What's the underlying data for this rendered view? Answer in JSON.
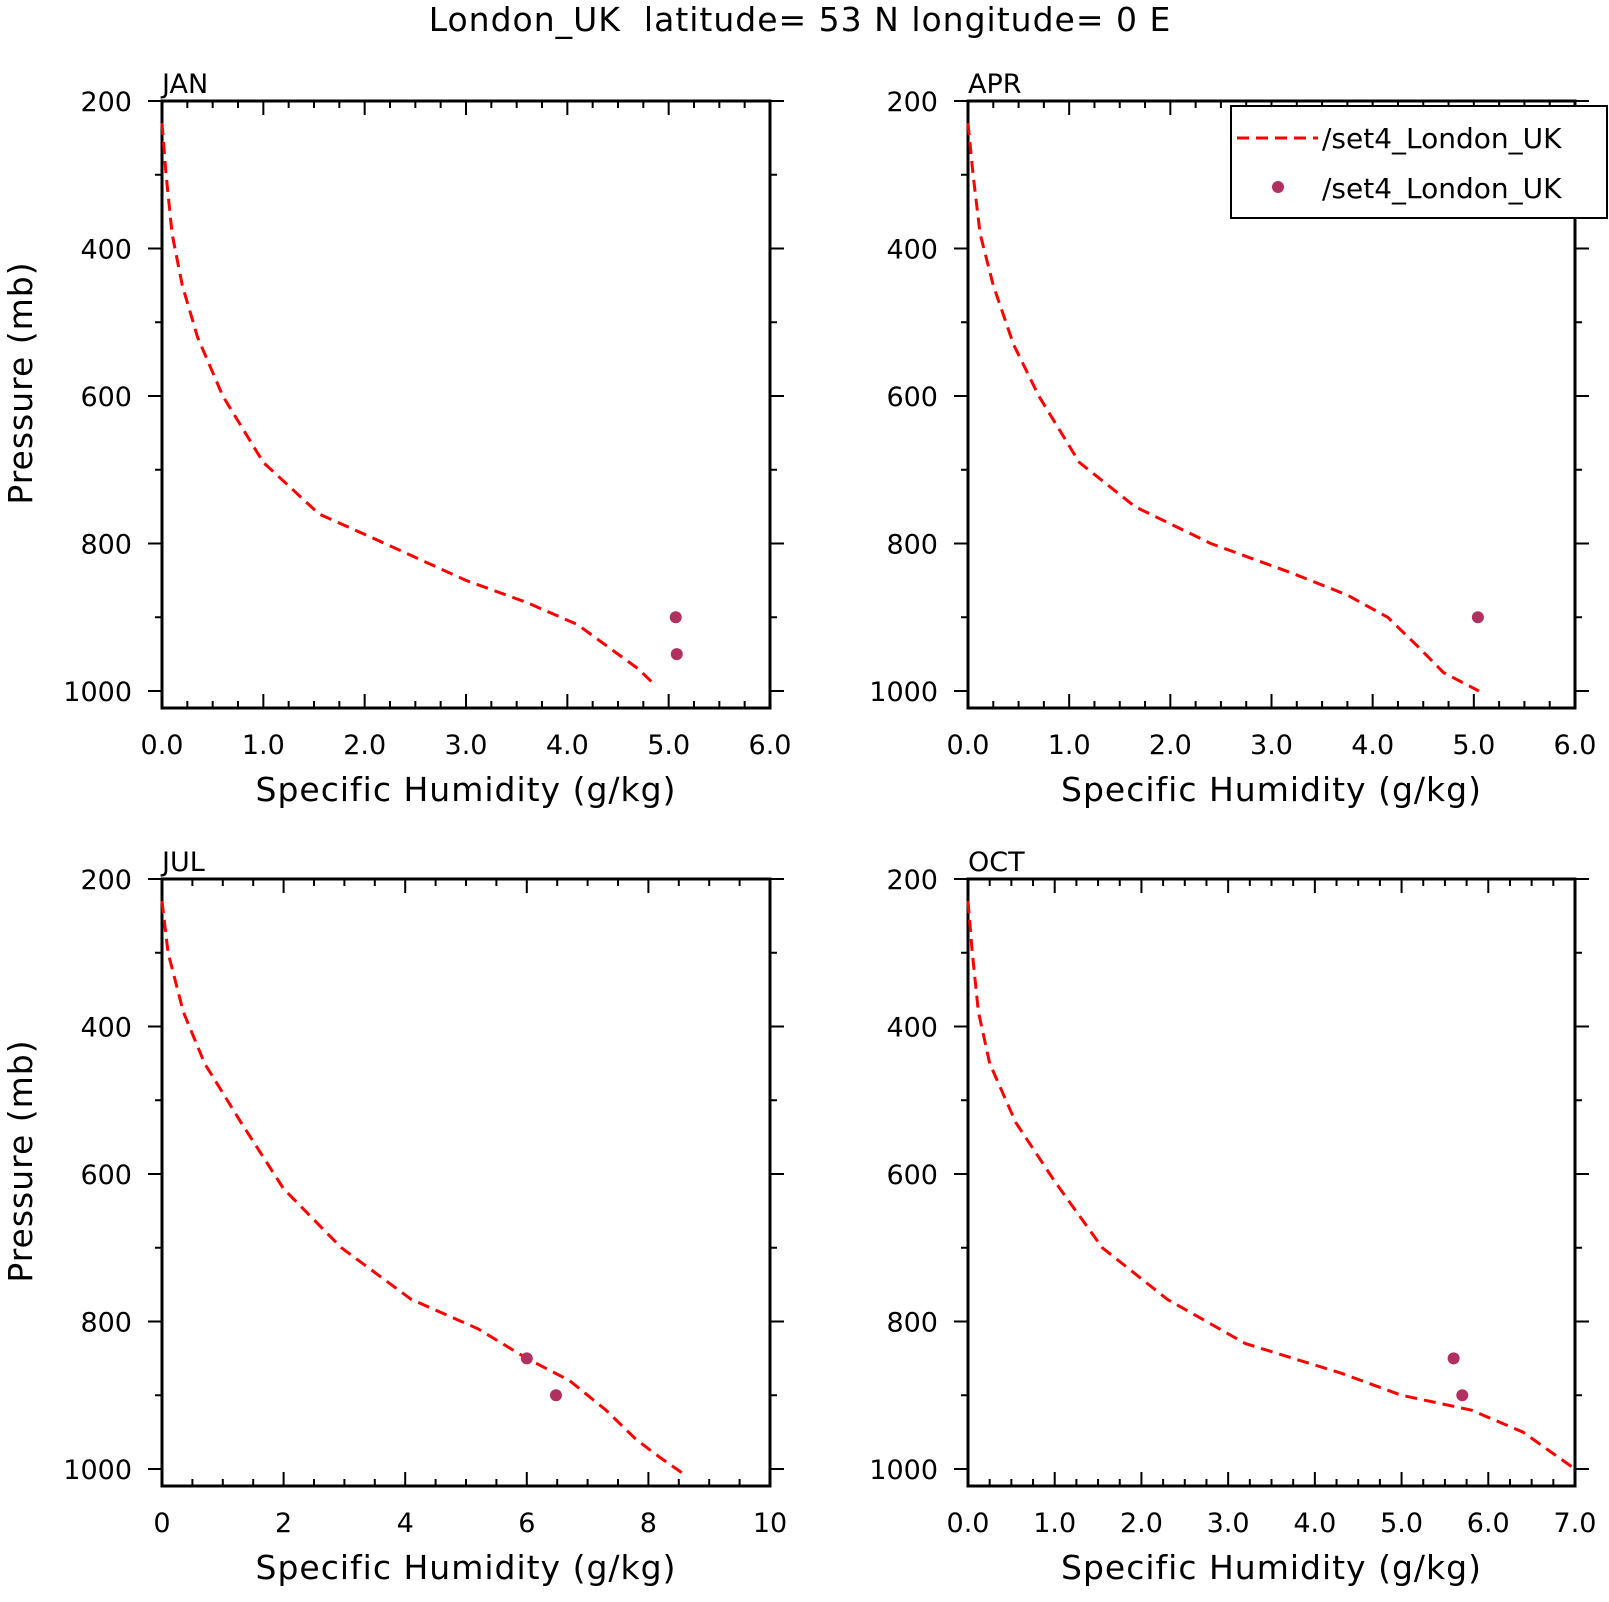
{
  "title": "London_UK  latitude= 53 N longitude= 0 E",
  "legend": {
    "entries": [
      {
        "label": "/set4_London_UK",
        "style": "dashed-line",
        "color": "#ff0000"
      },
      {
        "label": "/set4_London_UK",
        "style": "marker",
        "color": "#b03060"
      }
    ]
  },
  "chart_data": [
    {
      "type": "line",
      "panel": "JAN",
      "title": "JAN",
      "xlabel": "Specific Humidity (g/kg)",
      "ylabel": "Pressure (mb)",
      "xlim": [
        0,
        6
      ],
      "ylim": [
        200,
        1000
      ],
      "y_inverted": true,
      "xticks": [
        "0.0",
        "1.0",
        "2.0",
        "3.0",
        "4.0",
        "5.0",
        "6.0"
      ],
      "yticks": [
        "200",
        "400",
        "600",
        "800",
        "1000"
      ],
      "series": [
        {
          "name": "/set4_London_UK",
          "kind": "line",
          "x": [
            0.0,
            0.04,
            0.1,
            0.2,
            0.35,
            0.6,
            1.0,
            1.55,
            2.2,
            3.0,
            3.6,
            4.1,
            4.45,
            4.7,
            4.85
          ],
          "y": [
            230,
            300,
            380,
            450,
            520,
            600,
            690,
            760,
            800,
            850,
            880,
            910,
            945,
            970,
            990
          ]
        },
        {
          "name": "/set4_London_UK",
          "kind": "scatter",
          "x": [
            5.07,
            5.08
          ],
          "y": [
            900,
            950
          ]
        }
      ]
    },
    {
      "type": "line",
      "panel": "APR",
      "title": "APR",
      "xlabel": "Specific Humidity (g/kg)",
      "ylabel": "",
      "xlim": [
        0,
        6
      ],
      "ylim": [
        200,
        1000
      ],
      "y_inverted": true,
      "xticks": [
        "0.0",
        "1.0",
        "2.0",
        "3.0",
        "4.0",
        "5.0",
        "6.0"
      ],
      "yticks": [
        "200",
        "400",
        "600",
        "800",
        "1000"
      ],
      "series": [
        {
          "name": "/set4_London_UK",
          "kind": "line",
          "x": [
            0.0,
            0.05,
            0.12,
            0.25,
            0.45,
            0.7,
            1.1,
            1.65,
            2.4,
            3.2,
            3.75,
            4.15,
            4.45,
            4.7,
            5.05
          ],
          "y": [
            230,
            300,
            380,
            450,
            530,
            600,
            690,
            750,
            800,
            840,
            870,
            900,
            940,
            975,
            1000
          ]
        },
        {
          "name": "/set4_London_UK",
          "kind": "scatter",
          "x": [
            5.04
          ],
          "y": [
            900
          ]
        }
      ]
    },
    {
      "type": "line",
      "panel": "JUL",
      "title": "JUL",
      "xlabel": "Specific Humidity (g/kg)",
      "ylabel": "Pressure (mb)",
      "xlim": [
        0,
        10
      ],
      "ylim": [
        200,
        1000
      ],
      "y_inverted": true,
      "xticks": [
        "0",
        "2",
        "4",
        "6",
        "8",
        "10"
      ],
      "yticks": [
        "200",
        "400",
        "600",
        "800",
        "1000"
      ],
      "series": [
        {
          "name": "/set4_London_UK",
          "kind": "line",
          "x": [
            0.0,
            0.1,
            0.35,
            0.7,
            1.3,
            2.0,
            2.95,
            4.1,
            5.2,
            6.0,
            6.7,
            7.3,
            7.8,
            8.2,
            8.55
          ],
          "y": [
            230,
            300,
            380,
            450,
            530,
            620,
            700,
            770,
            810,
            850,
            880,
            920,
            960,
            985,
            1005
          ]
        },
        {
          "name": "/set4_London_UK",
          "kind": "scatter",
          "x": [
            6.0,
            6.48
          ],
          "y": [
            850,
            900
          ]
        }
      ]
    },
    {
      "type": "line",
      "panel": "OCT",
      "title": "OCT",
      "xlabel": "Specific Humidity (g/kg)",
      "ylabel": "",
      "xlim": [
        0,
        7
      ],
      "ylim": [
        200,
        1000
      ],
      "y_inverted": true,
      "xticks": [
        "0.0",
        "1.0",
        "2.0",
        "3.0",
        "4.0",
        "5.0",
        "6.0",
        "7.0"
      ],
      "yticks": [
        "200",
        "400",
        "600",
        "800",
        "1000"
      ],
      "series": [
        {
          "name": "/set4_London_UK",
          "kind": "line",
          "x": [
            0.0,
            0.05,
            0.12,
            0.25,
            0.55,
            1.0,
            1.55,
            2.3,
            3.2,
            4.3,
            5.0,
            5.8,
            6.4,
            6.7,
            7.0
          ],
          "y": [
            230,
            300,
            380,
            450,
            530,
            610,
            700,
            770,
            830,
            870,
            900,
            920,
            950,
            975,
            1000
          ]
        },
        {
          "name": "/set4_London_UK",
          "kind": "scatter",
          "x": [
            5.6,
            5.7
          ],
          "y": [
            850,
            900
          ]
        }
      ]
    }
  ]
}
